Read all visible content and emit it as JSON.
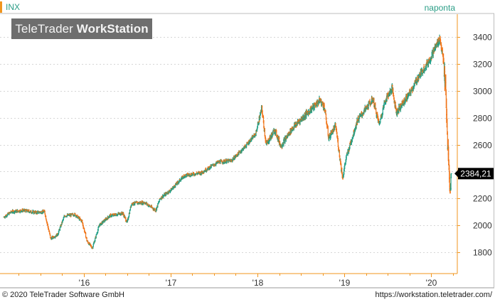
{
  "header": {
    "symbol": "INX",
    "period": "naponta"
  },
  "watermark": {
    "brand": "TeleTrader",
    "product": "WorkStation"
  },
  "footer": {
    "copyright": "© 2020 TeleTrader Software GmbH",
    "url": "https://workstation.teletrader.com/"
  },
  "colors": {
    "up": "#1f9f87",
    "down": "#f07418",
    "axis": "#f0951e",
    "grid": "#d6d6d6",
    "last_price_bg": "#000000"
  },
  "chart_data": {
    "type": "ohlc",
    "series": [
      {
        "name": "INX",
        "x_unit": "year",
        "points": [
          [
            2015.08,
            2060
          ],
          [
            2015.17,
            2100
          ],
          [
            2015.3,
            2110
          ],
          [
            2015.45,
            2095
          ],
          [
            2015.55,
            2100
          ],
          [
            2015.62,
            1900
          ],
          [
            2015.7,
            1930
          ],
          [
            2015.78,
            2070
          ],
          [
            2015.9,
            2080
          ],
          [
            2015.98,
            2030
          ],
          [
            2016.04,
            1880
          ],
          [
            2016.1,
            1830
          ],
          [
            2016.18,
            2000
          ],
          [
            2016.3,
            2070
          ],
          [
            2016.45,
            2090
          ],
          [
            2016.5,
            2020
          ],
          [
            2016.55,
            2160
          ],
          [
            2016.7,
            2170
          ],
          [
            2016.83,
            2110
          ],
          [
            2016.88,
            2200
          ],
          [
            2017.0,
            2260
          ],
          [
            2017.16,
            2370
          ],
          [
            2017.35,
            2390
          ],
          [
            2017.55,
            2470
          ],
          [
            2017.7,
            2480
          ],
          [
            2017.85,
            2580
          ],
          [
            2017.98,
            2680
          ],
          [
            2018.05,
            2870
          ],
          [
            2018.1,
            2600
          ],
          [
            2018.2,
            2710
          ],
          [
            2018.27,
            2590
          ],
          [
            2018.4,
            2720
          ],
          [
            2018.55,
            2820
          ],
          [
            2018.72,
            2930
          ],
          [
            2018.77,
            2880
          ],
          [
            2018.82,
            2650
          ],
          [
            2018.9,
            2740
          ],
          [
            2018.98,
            2350
          ],
          [
            2019.02,
            2500
          ],
          [
            2019.15,
            2780
          ],
          [
            2019.33,
            2940
          ],
          [
            2019.4,
            2750
          ],
          [
            2019.47,
            2930
          ],
          [
            2019.55,
            3020
          ],
          [
            2019.6,
            2840
          ],
          [
            2019.75,
            2980
          ],
          [
            2019.85,
            3100
          ],
          [
            2019.98,
            3230
          ],
          [
            2020.05,
            3330
          ],
          [
            2020.1,
            3390
          ],
          [
            2020.13,
            3270
          ],
          [
            2020.16,
            3080
          ],
          [
            2020.18,
            2740
          ],
          [
            2020.2,
            2450
          ],
          [
            2020.22,
            2240
          ],
          [
            2020.23,
            2384.21
          ]
        ]
      }
    ],
    "last_value": 2384.21,
    "last_value_label": "2384,21",
    "y_ticks": [
      1800,
      2000,
      2200,
      2400,
      2600,
      2800,
      3000,
      3200,
      3400
    ],
    "ylim": [
      1640,
      3560
    ],
    "x_ticks": [
      {
        "label": "'16",
        "value": 2016.0
      },
      {
        "label": "'17",
        "value": 2017.0
      },
      {
        "label": "'18",
        "value": 2018.0
      },
      {
        "label": "'19",
        "value": 2019.0
      },
      {
        "label": "'20",
        "value": 2020.0
      }
    ],
    "xlim": [
      2015.07,
      2020.3
    ],
    "grid": true,
    "y_axis_side": "right"
  }
}
